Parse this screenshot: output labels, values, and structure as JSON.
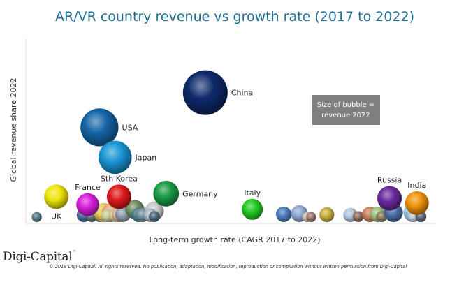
{
  "chart_data": {
    "type": "bubble",
    "title": "AR/VR country revenue vs growth rate (2017 to 2022)",
    "xlabel": "Long-term growth rate (CAGR 2017 to 2022)",
    "ylabel": "Global revenue share 2022",
    "xlim": [
      0,
      100
    ],
    "ylim": [
      0,
      100
    ],
    "x_scale_note": "No numeric tick labels shown; values are relative positions (0-100)",
    "size_meaning": "Size of bubble = revenue 2022",
    "grid": false,
    "legend": {
      "position": "center-right",
      "lines": [
        "Size of bubble =",
        "revenue 2022"
      ],
      "bg_color": "#7f7f7f"
    },
    "labeled_points": [
      {
        "name": "China",
        "x": 44,
        "y": 82,
        "size": 100,
        "color": "#0f2a6b"
      },
      {
        "name": "USA",
        "x": 17,
        "y": 60,
        "size": 72,
        "color": "#1565a8"
      },
      {
        "name": "Japan",
        "x": 21,
        "y": 41,
        "size": 55,
        "color": "#1a96d6"
      },
      {
        "name": "UK",
        "x": 6,
        "y": 16,
        "size": 30,
        "color": "#f0e50a"
      },
      {
        "name": "France",
        "x": 14,
        "y": 11,
        "size": 26,
        "color": "#d61fd9"
      },
      {
        "name": "Sth Korea",
        "x": 22,
        "y": 16,
        "size": 30,
        "color": "#e0191b"
      },
      {
        "name": "Germany",
        "x": 34,
        "y": 18,
        "size": 33,
        "color": "#1a9b45"
      },
      {
        "name": "Italy",
        "x": 56,
        "y": 8,
        "size": 22,
        "color": "#22cc22"
      },
      {
        "name": "Russia",
        "x": 91,
        "y": 15,
        "size": 30,
        "color": "#6a2a9c"
      },
      {
        "name": "India",
        "x": 98,
        "y": 12,
        "size": 28,
        "color": "#f0920a"
      }
    ],
    "unlabeled_points": [
      {
        "x": 1,
        "y": 0.5,
        "size": 5,
        "color": "#5f7f8f"
      },
      {
        "x": 13,
        "y": 2,
        "size": 10,
        "color": "#4f6f9f"
      },
      {
        "x": 15,
        "y": 0.5,
        "size": 6,
        "color": "#5f6f6f"
      },
      {
        "x": 17,
        "y": 0.5,
        "size": 5,
        "color": "#6f7f6f"
      },
      {
        "x": 18,
        "y": 6,
        "size": 18,
        "color": "#e6d05a"
      },
      {
        "x": 20,
        "y": 6,
        "size": 18,
        "color": "#e3a878"
      },
      {
        "x": 19,
        "y": 1,
        "size": 8,
        "color": "#c7d09a"
      },
      {
        "x": 21,
        "y": 1,
        "size": 8,
        "color": "#d8c890"
      },
      {
        "x": 22,
        "y": 2,
        "size": 10,
        "color": "#d8b8a0"
      },
      {
        "x": 23,
        "y": 3,
        "size": 12,
        "color": "#8f9faf"
      },
      {
        "x": 26,
        "y": 8,
        "size": 18,
        "color": "#6f8f5f"
      },
      {
        "x": 27,
        "y": 1,
        "size": 10,
        "color": "#4f7f8f"
      },
      {
        "x": 28,
        "y": 2,
        "size": 10,
        "color": "#6f8f9f"
      },
      {
        "x": 31,
        "y": 7,
        "size": 18,
        "color": "#c8c8c8"
      },
      {
        "x": 30,
        "y": 1,
        "size": 9,
        "color": "#b0b8c0"
      },
      {
        "x": 31,
        "y": 0.5,
        "size": 6,
        "color": "#4f6f7f"
      },
      {
        "x": 64,
        "y": 3,
        "size": 12,
        "color": "#4f7fbf"
      },
      {
        "x": 68,
        "y": 4,
        "size": 14,
        "color": "#8fa8d0"
      },
      {
        "x": 70,
        "y": 0.5,
        "size": 5,
        "color": "#d0c0b0"
      },
      {
        "x": 71,
        "y": 0.5,
        "size": 5,
        "color": "#9f7f6f"
      },
      {
        "x": 75,
        "y": 3,
        "size": 11,
        "color": "#c8b040"
      },
      {
        "x": 81,
        "y": 3,
        "size": 10,
        "color": "#b0c8e0"
      },
      {
        "x": 83,
        "y": 0.5,
        "size": 6,
        "color": "#8f6f5f"
      },
      {
        "x": 86,
        "y": 3,
        "size": 12,
        "color": "#d08060"
      },
      {
        "x": 88,
        "y": 3,
        "size": 12,
        "color": "#a0c080"
      },
      {
        "x": 89,
        "y": 0.5,
        "size": 6,
        "color": "#8f7f5f"
      },
      {
        "x": 92,
        "y": 6,
        "size": 18,
        "color": "#4f6fa8"
      },
      {
        "x": 97,
        "y": 6,
        "size": 18,
        "color": "#9fc8e8"
      },
      {
        "x": 97,
        "y": 0.5,
        "size": 5,
        "color": "#c0c8d0"
      },
      {
        "x": 99,
        "y": 0.5,
        "size": 6,
        "color": "#5f6f7f"
      }
    ]
  },
  "footer": {
    "brand": "Digi-Capital",
    "brand_mark": "™",
    "copyright": "© 2018 Digi-Capital. All rights reserved. No publication, adaptation, modification, reproduction or compilation without written permission from Digi-Capital"
  }
}
